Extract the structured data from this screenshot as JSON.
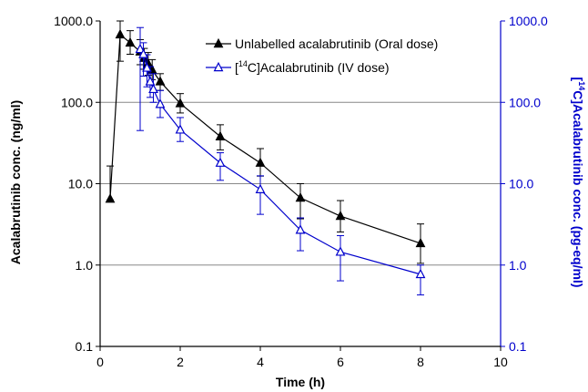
{
  "chart_data": {
    "type": "line",
    "title": "",
    "xlabel": "Time (h)",
    "ylabel": "Acalabrutinib conc. (ng/ml)",
    "y2label": "[14C]Acalabrutinib conc. (pg-eq/ml)",
    "y2label_parts": {
      "prefix": "[",
      "sup": "14",
      "suffix": "C]Acalabrutinib conc. (pg-eq/ml)"
    },
    "xlim": [
      0,
      10
    ],
    "ylim": [
      0.1,
      1000
    ],
    "y2lim": [
      0.1,
      1000
    ],
    "yscale": "log",
    "x_ticks": [
      "0",
      "2",
      "4",
      "6",
      "8",
      "10"
    ],
    "y_ticks": [
      "1000.0",
      "100.0",
      "10.0",
      "1.0",
      "0.1"
    ],
    "y2_ticks": [
      "1000.0",
      "100.0",
      "10.0",
      "1.0",
      "0.1"
    ],
    "grid": "horizontal",
    "legend_position": "top-right",
    "series": [
      {
        "name": "Unlabelled acalabrutinib (Oral dose)",
        "legend_parts": {
          "prefix": "Unlabelled acalabrutinib (Oral dose)",
          "sup": "",
          "suffix": ""
        },
        "axis": "left",
        "color": "#000000",
        "marker": "filled-triangle",
        "x": [
          0.25,
          0.5,
          0.75,
          1.0,
          1.1,
          1.2,
          1.3,
          1.5,
          2,
          3,
          4,
          5,
          6,
          8
        ],
        "y": [
          6.5,
          680,
          540,
          420,
          350,
          300,
          250,
          180,
          97,
          38,
          18,
          6.7,
          4.0,
          1.85
        ],
        "err_low": [
          6.3,
          320,
          390,
          290,
          255,
          215,
          190,
          140,
          74,
          26,
          12.4,
          3.7,
          2.55,
          1.05
        ],
        "err_high": [
          16.5,
          1000,
          760,
          590,
          460,
          410,
          335,
          225,
          128,
          53,
          27,
          10,
          6.2,
          3.2
        ]
      },
      {
        "name": "[14C]Acalabrutinib (IV dose)",
        "legend_parts": {
          "prefix": "[",
          "sup": "14",
          "suffix": "C]Acalabrutinib (IV dose)"
        },
        "axis": "right",
        "color": "#0000cc",
        "marker": "open-triangle",
        "x": [
          1.0,
          1.08,
          1.17,
          1.25,
          1.33,
          1.5,
          2,
          3,
          4,
          5,
          6,
          8
        ],
        "y": [
          450,
          390,
          265,
          180,
          145,
          95,
          46,
          18,
          8.5,
          2.7,
          1.45,
          0.77
        ],
        "err_low": [
          45,
          210,
          155,
          115,
          100,
          65,
          33,
          11,
          4.2,
          1.5,
          0.64,
          0.43
        ],
        "err_high": [
          830,
          540,
          385,
          275,
          225,
          140,
          65,
          24,
          12.5,
          3.8,
          2.3,
          1.0
        ]
      }
    ]
  }
}
